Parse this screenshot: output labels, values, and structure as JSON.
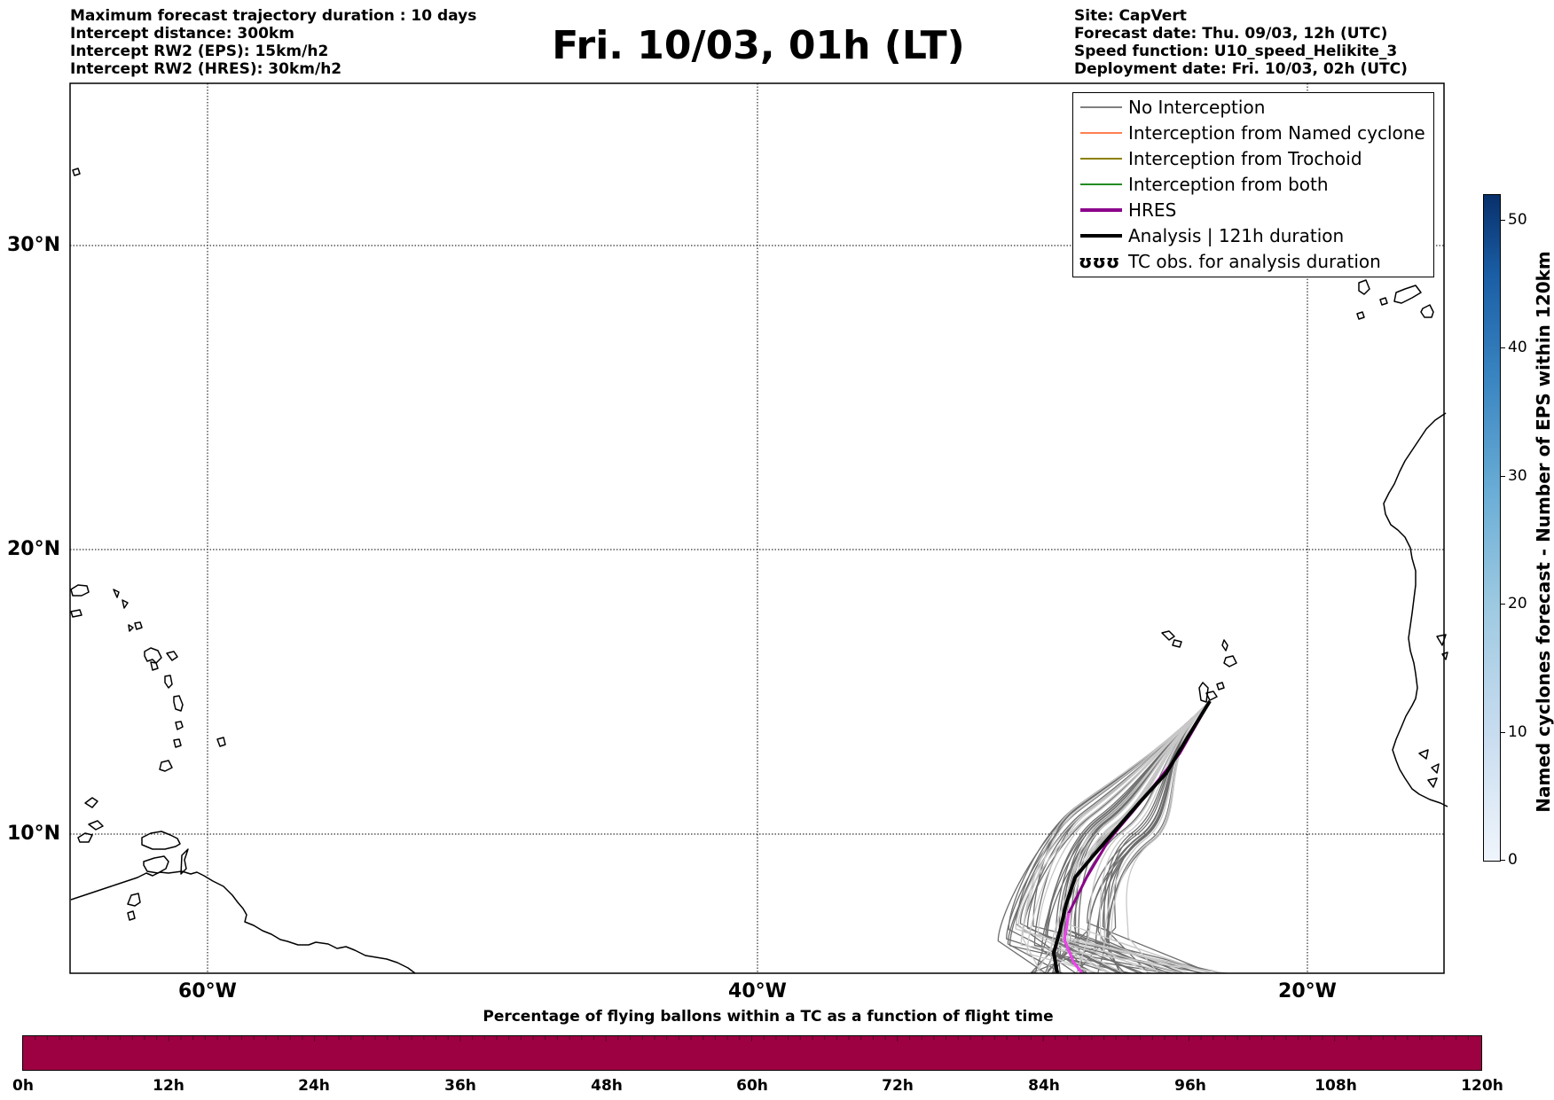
{
  "header": {
    "left_lines": [
      "Maximum forecast trajectory duration : 10 days",
      "Intercept distance: 300km",
      "Intercept RW2 (EPS):  15km/h2",
      "Intercept RW2 (HRES): 30km/h2"
    ],
    "title": "Fri. 10/03, 01h (LT)",
    "right_lines": [
      "Site: CapVert",
      "Forecast date: Thu. 09/03, 12h (UTC)",
      "Speed function: U10_speed_Helikite_3",
      "Deployment date: Fri. 10/03, 02h (UTC)"
    ]
  },
  "map": {
    "lat_labels": [
      "30°N",
      "20°N",
      "10°N"
    ],
    "lon_labels": [
      "60°W",
      "40°W",
      "20°W"
    ],
    "lat_values": [
      30,
      20,
      10
    ],
    "lon_values": [
      -60,
      -40,
      -20
    ]
  },
  "legend": {
    "items": [
      {
        "label": "No Interception",
        "color": "#808080",
        "style": "thin"
      },
      {
        "label": "Interception from Named cyclone",
        "color": "#ff7f50",
        "style": "thin"
      },
      {
        "label": "Interception from Trochoid",
        "color": "#8b8000",
        "style": "thin"
      },
      {
        "label": "Interception from both",
        "color": "#228b22",
        "style": "thin"
      },
      {
        "label": "HRES",
        "color": "#8b008b",
        "style": "thick"
      },
      {
        "label": "Analysis | 121h duration",
        "color": "#000000",
        "style": "thick"
      },
      {
        "label": "TC obs. for analysis duration",
        "color": "#000000",
        "style": "symbol",
        "symbol": "ʊʊʊ"
      }
    ]
  },
  "colorbar_right": {
    "label": "Named cyclones forecast - Number of EPS within 120km",
    "ticks": [
      "0",
      "10",
      "20",
      "30",
      "40",
      "50"
    ],
    "tick_values": [
      0,
      10,
      20,
      30,
      40,
      50
    ],
    "max": 52,
    "colors": [
      "#f0f5fc",
      "#08306b"
    ]
  },
  "colorbar_bottom": {
    "title": "Percentage of flying ballons within a TC as a function of flight time",
    "ticks": [
      "0h",
      "12h",
      "24h",
      "36h",
      "48h",
      "60h",
      "72h",
      "84h",
      "96h",
      "108h",
      "120h"
    ],
    "color": "#9e0142"
  }
}
